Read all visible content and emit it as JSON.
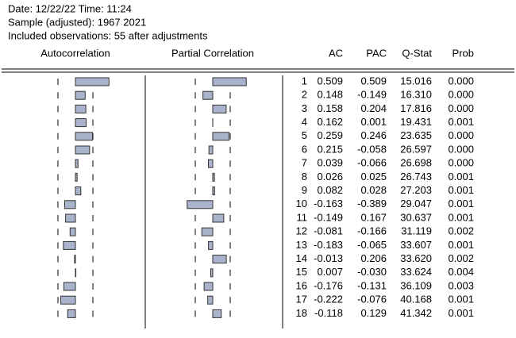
{
  "header": {
    "lines": [
      "Date: 12/22/22   Time: 11:24",
      "Sample (adjusted): 1967 2021",
      "Included observations: 55 after adjustments"
    ]
  },
  "table": {
    "columns": [
      "Autocorrelation",
      "Partial Correlation",
      "",
      "AC",
      "PAC",
      "Q-Stat",
      "Prob"
    ],
    "rows": [
      [
        "1",
        "0.509",
        "0.509",
        "15.016",
        "0.000"
      ],
      [
        "2",
        "0.148",
        "-0.149",
        "16.310",
        "0.000"
      ],
      [
        "3",
        "0.158",
        "0.204",
        "17.816",
        "0.000"
      ],
      [
        "4",
        "0.162",
        "0.001",
        "19.431",
        "0.001"
      ],
      [
        "5",
        "0.259",
        "0.246",
        "23.635",
        "0.000"
      ],
      [
        "6",
        "0.215",
        "-0.058",
        "26.597",
        "0.000"
      ],
      [
        "7",
        "0.039",
        "-0.066",
        "26.698",
        "0.000"
      ],
      [
        "8",
        "0.026",
        "0.025",
        "26.743",
        "0.001"
      ],
      [
        "9",
        "0.082",
        "0.028",
        "27.203",
        "0.001"
      ],
      [
        "10",
        "-0.163",
        "-0.389",
        "29.047",
        "0.001"
      ],
      [
        "11",
        "-0.149",
        "0.167",
        "30.637",
        "0.001"
      ],
      [
        "12",
        "-0.081",
        "-0.166",
        "31.119",
        "0.002"
      ],
      [
        "13",
        "-0.183",
        "-0.065",
        "33.607",
        "0.001"
      ],
      [
        "14",
        "-0.013",
        "0.206",
        "33.620",
        "0.002"
      ],
      [
        "15",
        "0.007",
        "-0.030",
        "33.624",
        "0.004"
      ],
      [
        "16",
        "-0.176",
        "-0.131",
        "36.109",
        "0.003"
      ],
      [
        "17",
        "-0.222",
        "-0.076",
        "40.168",
        "0.001"
      ],
      [
        "18",
        "-0.118",
        "0.129",
        "41.342",
        "0.001"
      ]
    ]
  }
}
